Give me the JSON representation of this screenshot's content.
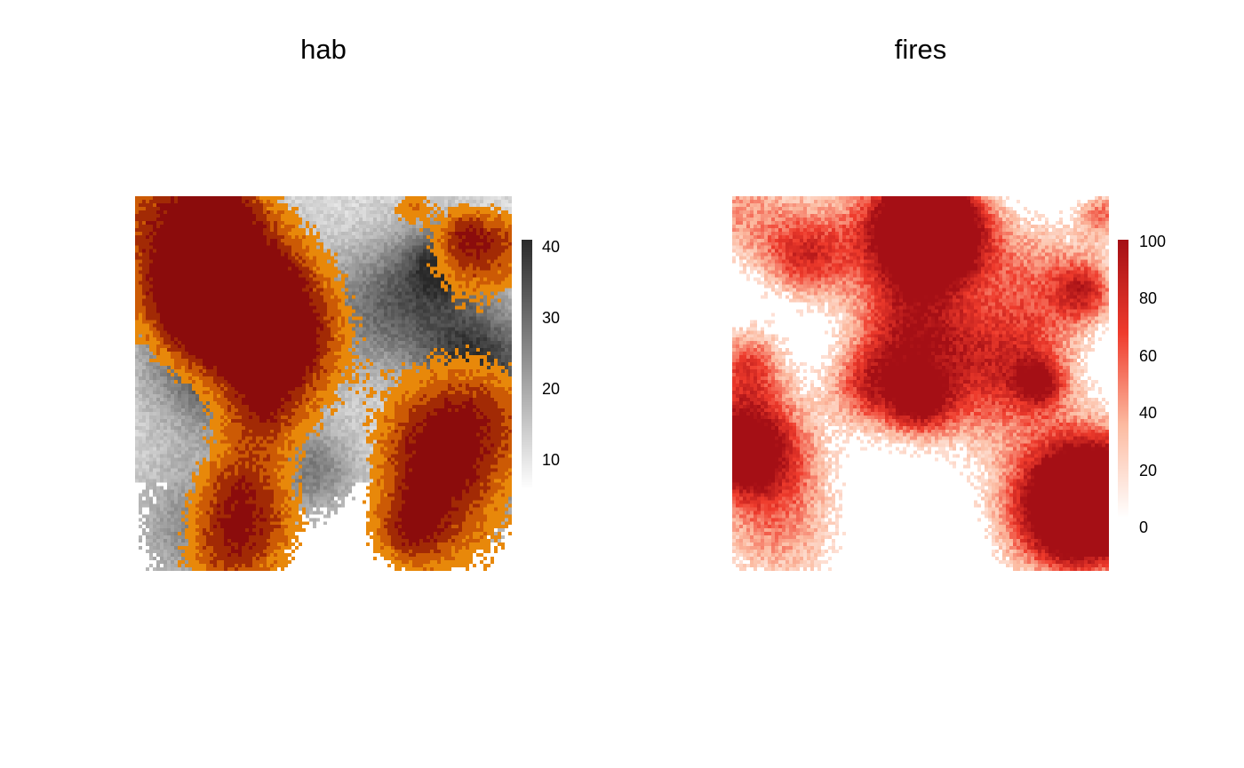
{
  "chart_data": [
    {
      "type": "heatmap",
      "title": "hab",
      "description_fill": "grey habitat raster overlaid with orange-to-dark-red fire patches",
      "colorbar": {
        "ticks": [
          "10",
          "20",
          "30",
          "40"
        ],
        "tick_values": [
          10,
          20,
          30,
          40
        ],
        "range": [
          6,
          41
        ],
        "colors": [
          "#ffffff",
          "#2b2b2b"
        ]
      },
      "overlay_colors": [
        "#e8880a",
        "#cc5a05",
        "#a22a05",
        "#8b0c0c"
      ]
    },
    {
      "type": "heatmap",
      "title": "fires",
      "colorbar": {
        "ticks": [
          "0",
          "20",
          "40",
          "60",
          "80",
          "100"
        ],
        "tick_values": [
          0,
          20,
          40,
          60,
          80,
          100
        ],
        "range": [
          0,
          100
        ],
        "colors": [
          "#ffffff",
          "#fcbba1",
          "#ef3b2c",
          "#a50f15"
        ]
      }
    }
  ],
  "panels": {
    "hab": {
      "title": "hab"
    },
    "fires": {
      "title": "fires"
    }
  }
}
